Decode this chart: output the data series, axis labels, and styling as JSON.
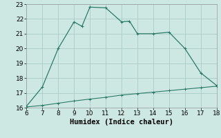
{
  "xlabel": "Humidex (Indice chaleur)",
  "xlim": [
    6,
    18
  ],
  "ylim": [
    16,
    23
  ],
  "xticks": [
    6,
    7,
    8,
    9,
    10,
    11,
    12,
    13,
    14,
    15,
    16,
    17,
    18
  ],
  "yticks": [
    16,
    17,
    18,
    19,
    20,
    21,
    22,
    23
  ],
  "line1_x": [
    6,
    7,
    8,
    9,
    9.5,
    10,
    11,
    12,
    12.5,
    13,
    14,
    15,
    16,
    17,
    18
  ],
  "line1_y": [
    16.1,
    17.4,
    20.0,
    21.8,
    21.5,
    22.8,
    22.75,
    21.8,
    21.85,
    21.0,
    21.0,
    21.1,
    20.0,
    18.35,
    17.5
  ],
  "line2_x": [
    6,
    7,
    8,
    9,
    10,
    11,
    12,
    13,
    14,
    15,
    16,
    17,
    18
  ],
  "line2_y": [
    16.05,
    16.15,
    16.3,
    16.45,
    16.58,
    16.7,
    16.85,
    16.95,
    17.05,
    17.15,
    17.25,
    17.35,
    17.45
  ],
  "line_color": "#2a7a6a",
  "bg_color": "#cde8e2",
  "grid_color": "#aaccC6",
  "tick_fontsize": 6.5,
  "xlabel_fontsize": 7.5
}
